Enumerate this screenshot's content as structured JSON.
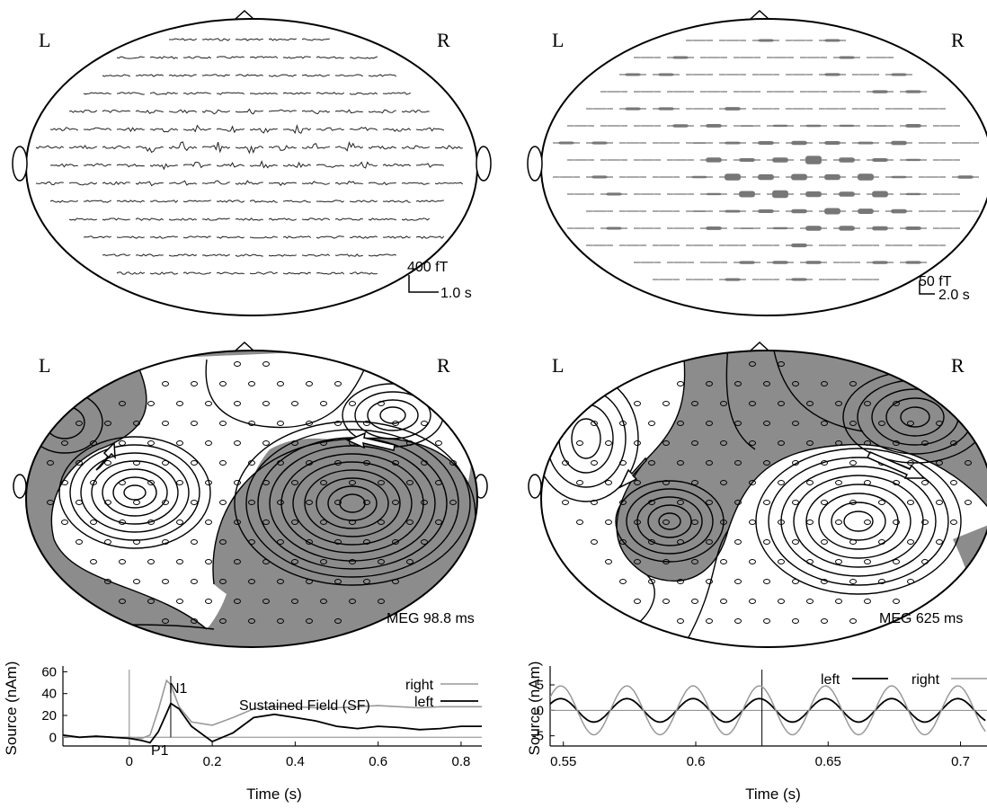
{
  "panels": {
    "top_left": {
      "left_label": "L",
      "right_label": "R",
      "scale_amp": "400 fT",
      "scale_time": "1.0 s"
    },
    "top_right": {
      "left_label": "L",
      "right_label": "R",
      "scale_amp": "50 fT",
      "scale_time": "2.0 s"
    },
    "mid_left": {
      "left_label": "L",
      "right_label": "R",
      "caption": "MEG 98.8 ms"
    },
    "mid_right": {
      "left_label": "L",
      "right_label": "R",
      "caption": "MEG 625 ms"
    }
  },
  "chart_data": [
    {
      "type": "line",
      "xlabel": "Time (s)",
      "ylabel": "Source (nAm)",
      "xlim": [
        -0.16,
        0.85
      ],
      "ylim": [
        -8,
        62
      ],
      "x_ticks": [
        "0",
        "0.2",
        "0.4",
        "0.6",
        "0.8"
      ],
      "x_tick_values": [
        0,
        0.2,
        0.4,
        0.6,
        0.8
      ],
      "y_ticks": [
        "0",
        "20",
        "40",
        "60"
      ],
      "y_tick_values": [
        0,
        20,
        40,
        60
      ],
      "annotations": {
        "n1": "N1",
        "p1": "P1",
        "sf": "Sustained Field (SF)"
      },
      "series": [
        {
          "name": "right",
          "color": "#999999",
          "x": [
            -0.16,
            -0.12,
            -0.08,
            -0.04,
            0.0,
            0.03,
            0.05,
            0.07,
            0.09,
            0.1,
            0.12,
            0.15,
            0.2,
            0.25,
            0.3,
            0.35,
            0.4,
            0.45,
            0.5,
            0.55,
            0.6,
            0.65,
            0.7,
            0.75,
            0.8,
            0.85
          ],
          "values": [
            1,
            0,
            1,
            0,
            0,
            -1,
            2,
            25,
            52,
            48,
            28,
            14,
            11,
            18,
            26,
            28,
            28,
            27,
            27,
            28,
            29,
            28,
            27,
            28,
            28,
            28
          ]
        },
        {
          "name": "left",
          "color": "#000000",
          "x": [
            -0.16,
            -0.12,
            -0.08,
            -0.04,
            0.0,
            0.03,
            0.05,
            0.07,
            0.09,
            0.1,
            0.12,
            0.15,
            0.2,
            0.25,
            0.3,
            0.35,
            0.4,
            0.45,
            0.5,
            0.55,
            0.6,
            0.65,
            0.7,
            0.75,
            0.8,
            0.85
          ],
          "values": [
            2,
            0,
            1,
            0,
            -1,
            -3,
            -5,
            5,
            22,
            31,
            26,
            10,
            -4,
            4,
            18,
            21,
            18,
            15,
            10,
            8,
            10,
            9,
            7,
            8,
            10,
            10
          ]
        }
      ]
    },
    {
      "type": "line",
      "xlabel": "Time (s)",
      "ylabel": "Source (nAm)",
      "xlim": [
        0.545,
        0.71
      ],
      "ylim": [
        -7,
        8
      ],
      "x_ticks": [
        "0.55",
        "0.6",
        "0.65",
        "0.7"
      ],
      "x_tick_values": [
        0.55,
        0.6,
        0.65,
        0.7
      ],
      "y_ticks": [
        "-5",
        "0",
        "5"
      ],
      "y_tick_values": [
        -5,
        0,
        5
      ],
      "series": [
        {
          "name": "left",
          "color": "#000000",
          "amplitude": 2.3,
          "frequency_hz": 40
        },
        {
          "name": "right",
          "color": "#999999",
          "amplitude": 4.8,
          "frequency_hz": 40
        }
      ]
    }
  ]
}
